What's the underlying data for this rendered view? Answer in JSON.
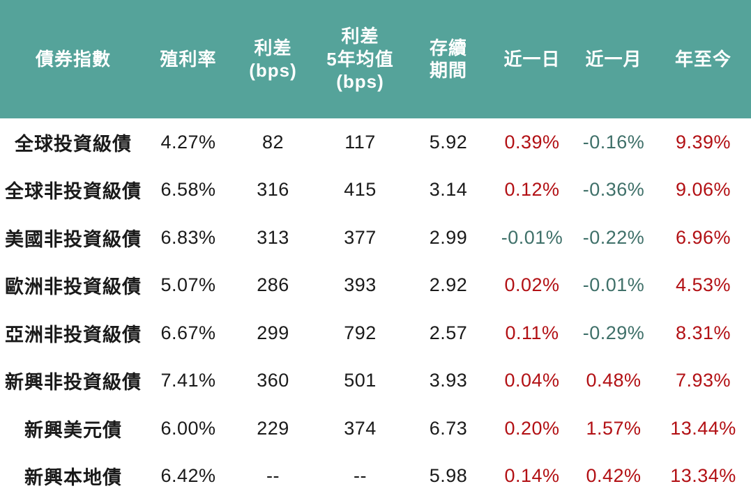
{
  "colors": {
    "header_background": "#55a39a",
    "header_text": "#ffffff",
    "body_background": "#ffffff",
    "body_text": "#1a1a1a",
    "positive_change": "#b21014",
    "negative_change": "#3f7069"
  },
  "chart_data": {
    "type": "table",
    "title": "",
    "columns": [
      {
        "id": "index_name",
        "label": "債券指數"
      },
      {
        "id": "yield",
        "label": "殖利率"
      },
      {
        "id": "spread_bps",
        "label": "利差\n(bps)"
      },
      {
        "id": "spread_5y_avg_bps",
        "label": "利差\n5年均值\n(bps)"
      },
      {
        "id": "duration",
        "label": "存續\n期間"
      },
      {
        "id": "change_1d",
        "label": "近一日"
      },
      {
        "id": "change_1m",
        "label": "近一月"
      },
      {
        "id": "change_ytd",
        "label": "年至今"
      }
    ],
    "rows": [
      {
        "cells": [
          "全球投資級債",
          "4.27%",
          "82",
          "117",
          "5.92",
          "0.39%",
          "-0.16%",
          "9.39%"
        ]
      },
      {
        "cells": [
          "全球非投資級債",
          "6.58%",
          "316",
          "415",
          "3.14",
          "0.12%",
          "-0.36%",
          "9.06%"
        ]
      },
      {
        "cells": [
          "美國非投資級債",
          "6.83%",
          "313",
          "377",
          "2.99",
          "-0.01%",
          "-0.22%",
          "6.96%"
        ]
      },
      {
        "cells": [
          "歐洲非投資級債",
          "5.07%",
          "286",
          "393",
          "2.92",
          "0.02%",
          "-0.01%",
          "4.53%"
        ]
      },
      {
        "cells": [
          "亞洲非投資級債",
          "6.67%",
          "299",
          "792",
          "2.57",
          "0.11%",
          "-0.29%",
          "8.31%"
        ]
      },
      {
        "cells": [
          "新興非投資級債",
          "7.41%",
          "360",
          "501",
          "3.93",
          "0.04%",
          "0.48%",
          "7.93%"
        ]
      },
      {
        "cells": [
          "新興美元債",
          "6.00%",
          "229",
          "374",
          "6.73",
          "0.20%",
          "1.57%",
          "13.44%"
        ]
      },
      {
        "cells": [
          "新興本地債",
          "6.42%",
          "--",
          "--",
          "5.98",
          "0.14%",
          "0.42%",
          "13.34%"
        ]
      }
    ]
  }
}
